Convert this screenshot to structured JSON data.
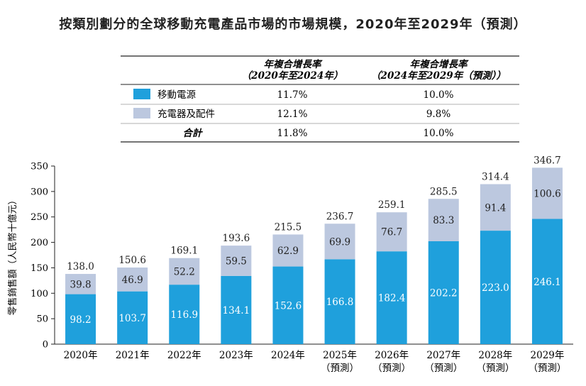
{
  "title": "按類別劃分的全球移動充電產品市場的市場規模，2020年至2029年（預測）",
  "cagr_table": {
    "col1_header": [
      "年複合增長率",
      "（2020年至2024年）"
    ],
    "col2_header": [
      "年複合增長率",
      "（2024年至2029年（預測））"
    ],
    "rows": [
      {
        "label": "移動電源",
        "v1": "11.7%",
        "v2": "10.0%",
        "color": "#1fa0dc"
      },
      {
        "label": "充電器及配件",
        "v1": "12.1%",
        "v2": "9.8%",
        "color": "#bcc8df"
      }
    ],
    "total": {
      "label": "合計",
      "v1": "11.8%",
      "v2": "10.0%"
    }
  },
  "chart_data": {
    "type": "bar",
    "stacked": true,
    "categories": [
      "2020年",
      "2021年",
      "2022年",
      "2023年",
      "2024年",
      "2025年",
      "2026年",
      "2027年",
      "2028年",
      "2029年"
    ],
    "category_sublabels": [
      "",
      "",
      "",
      "",
      "",
      "（預測）",
      "（預測）",
      "（預測）",
      "（預測）",
      "（預測）"
    ],
    "series": [
      {
        "name": "移動電源",
        "color": "#1fa0dc",
        "values": [
          98.2,
          103.7,
          116.9,
          134.1,
          152.6,
          166.8,
          182.4,
          202.2,
          223.0,
          246.1
        ]
      },
      {
        "name": "充電器及配件",
        "color": "#bcc8df",
        "values": [
          39.8,
          46.9,
          52.2,
          59.5,
          62.9,
          69.9,
          76.7,
          83.3,
          91.4,
          100.6
        ]
      }
    ],
    "totals": [
      138.0,
      150.6,
      169.1,
      193.6,
      215.5,
      236.7,
      259.1,
      285.5,
      314.4,
      346.7
    ],
    "ylabel": "零售銷售額（人民幣十億元）",
    "ylim": [
      0,
      350
    ],
    "yticks": [
      0,
      50,
      100,
      150,
      200,
      250,
      300,
      350
    ]
  }
}
